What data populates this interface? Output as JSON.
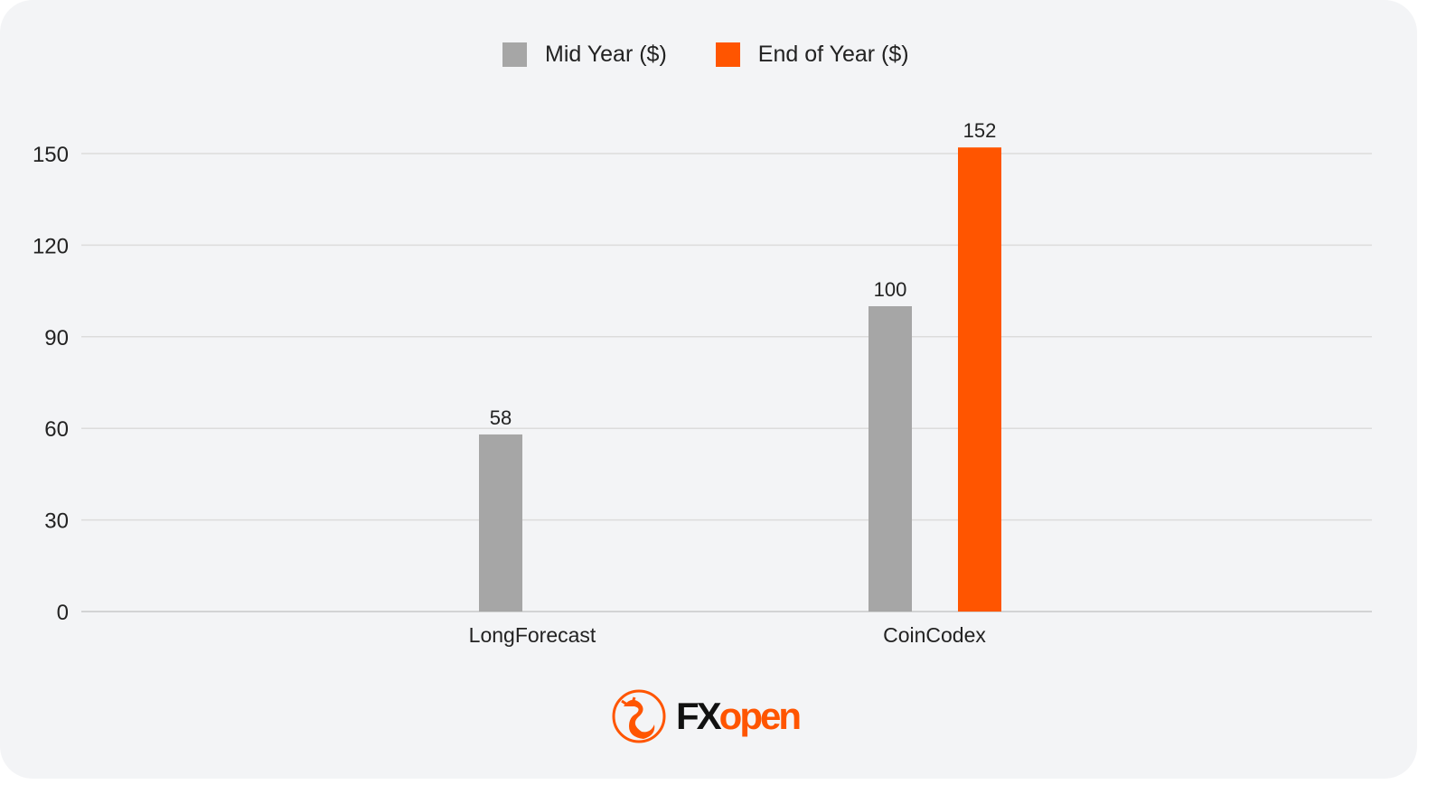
{
  "chart_data": {
    "type": "bar",
    "title": "",
    "xlabel": "",
    "ylabel": "",
    "categories": [
      "LongForecast",
      "CoinCodex"
    ],
    "series": [
      {
        "name": "Mid Year ($)",
        "color": "#a6a6a6",
        "values": [
          58,
          100
        ]
      },
      {
        "name": "End of Year ($)",
        "color": "#ff5500",
        "values": [
          null,
          152
        ]
      }
    ],
    "yticks": [
      0,
      30,
      60,
      90,
      120,
      150
    ],
    "ylim": [
      0,
      150
    ],
    "grid": true,
    "legend_position": "top-center"
  },
  "logo": {
    "text": "FXopen",
    "accent": "#ff5500"
  }
}
